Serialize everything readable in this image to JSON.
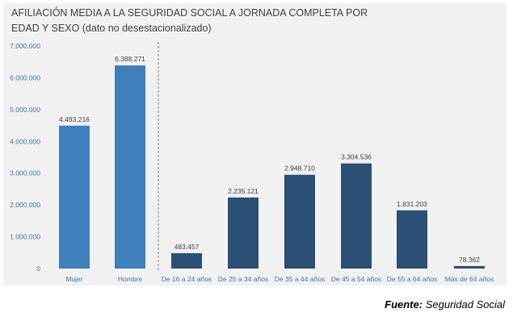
{
  "colors": {
    "panel": "#f1f1f1",
    "sexo_bar": "#3f7fbc",
    "edad_bar": "#2b4f75",
    "text": "#404040",
    "axis_text": "#4472a8",
    "divider": "#7f7f7f"
  },
  "source": {
    "label": "Fuente:",
    "text": "Seguridad Social"
  },
  "chart_data": {
    "type": "bar",
    "title": "AFILIACIÓN MEDIA A LA SEGURIDAD SOCIAL A JORNADA COMPLETA POR EDAD Y SEXO (dato no desestacionalizado)",
    "xlabel": "",
    "ylabel": "",
    "ylim": [
      0,
      7000000
    ],
    "yticks": [
      0,
      1000000,
      2000000,
      3000000,
      4000000,
      5000000,
      6000000,
      7000000
    ],
    "ytick_labels": [
      "0",
      "1.000.000",
      "2.000.000",
      "3.000.000",
      "4.000.000",
      "5.000.000",
      "6.000.000",
      "7.000.000"
    ],
    "grid": false,
    "legend": "none",
    "divider_after_index": 1,
    "categories": [
      "Mujer",
      "Hombre",
      "De 16 a 24 años",
      "De 25 a 34 años",
      "De 35 a 44 años",
      "De 45 a 54 años",
      "De 55 a 64 años",
      "Más de 64 años"
    ],
    "groups": [
      "sexo",
      "sexo",
      "edad",
      "edad",
      "edad",
      "edad",
      "edad",
      "edad"
    ],
    "values": [
      4493216,
      6388271,
      483457,
      2235121,
      2948710,
      3304536,
      1831203,
      78362
    ],
    "value_labels": [
      "4.493.216",
      "6.388.271",
      "483.457",
      "2.235.121",
      "2.948.710",
      "3.304.536",
      "1.831.203",
      "78.362"
    ]
  }
}
